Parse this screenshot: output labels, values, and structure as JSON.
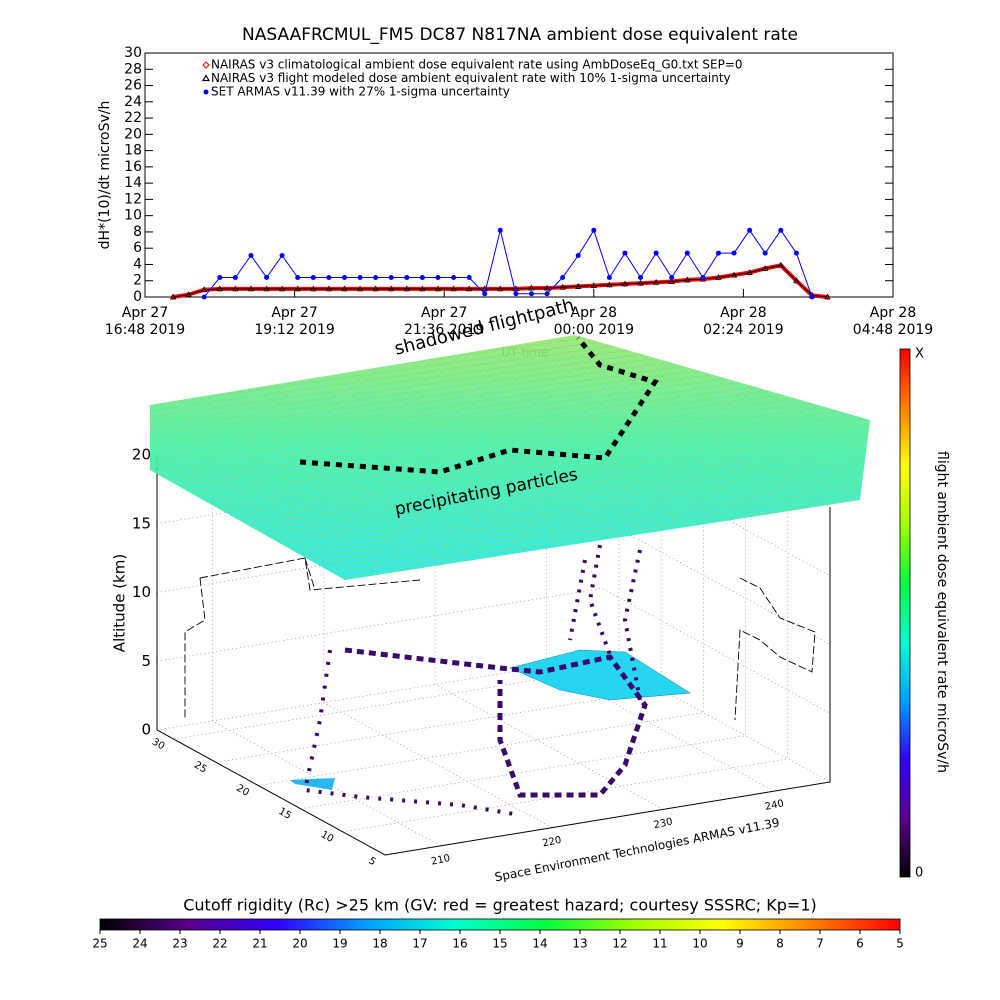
{
  "chart_data": [
    {
      "type": "line",
      "title": "NASAAFRCMUL_FM5 DC87 N817NA ambient dose equivalent rate",
      "xlabel": "UT time",
      "ylabel": "dH*(10)/dt microSv/h",
      "x": [
        "2019-04-27T17:15",
        "2019-04-27T17:30",
        "2019-04-27T17:45",
        "2019-04-27T18:00",
        "2019-04-27T18:15",
        "2019-04-27T18:30",
        "2019-04-27T18:45",
        "2019-04-27T19:00",
        "2019-04-27T19:15",
        "2019-04-27T19:30",
        "2019-04-27T19:45",
        "2019-04-27T20:00",
        "2019-04-27T20:15",
        "2019-04-27T20:30",
        "2019-04-27T20:45",
        "2019-04-27T21:00",
        "2019-04-27T21:15",
        "2019-04-27T21:30",
        "2019-04-27T21:45",
        "2019-04-27T22:00",
        "2019-04-27T22:15",
        "2019-04-27T22:30",
        "2019-04-27T22:45",
        "2019-04-27T23:00",
        "2019-04-27T23:15",
        "2019-04-27T23:30",
        "2019-04-27T23:45",
        "2019-04-28T00:00",
        "2019-04-28T00:15",
        "2019-04-28T00:30",
        "2019-04-28T00:45",
        "2019-04-28T01:00",
        "2019-04-28T01:15",
        "2019-04-28T01:30",
        "2019-04-28T01:45",
        "2019-04-28T02:00",
        "2019-04-28T02:15",
        "2019-04-28T02:30",
        "2019-04-28T02:45",
        "2019-04-28T03:00",
        "2019-04-28T03:15",
        "2019-04-28T03:30",
        "2019-04-28T03:45"
      ],
      "series": [
        {
          "name": "NAIRAS v3 climatological ambient dose equivalent rate using AmbDoseEq_G0.txt SEP=0",
          "color": "#ff0000",
          "marker": "diamond",
          "values": [
            0,
            0.3,
            0.9,
            1,
            1,
            1,
            1,
            1,
            1,
            1,
            1,
            1,
            1,
            1,
            1,
            1,
            1,
            1,
            1,
            1,
            1,
            1,
            1,
            1.1,
            1.1,
            1.2,
            1.3,
            1.4,
            1.5,
            1.6,
            1.7,
            1.8,
            1.9,
            2.1,
            2.2,
            2.4,
            2.7,
            3,
            3.5,
            3.9,
            2,
            0.2,
            0
          ]
        },
        {
          "name": "NAIRAS v3 flight modeled dose ambient equivalent rate with 10% 1-sigma uncertainty",
          "color": "#000000",
          "marker": "triangle",
          "values": [
            0,
            0.3,
            0.9,
            1,
            1,
            1,
            1,
            1,
            1,
            1,
            1,
            1,
            1,
            1,
            1,
            1,
            1,
            1,
            1,
            1,
            1,
            1,
            1,
            1.1,
            1.1,
            1.2,
            1.3,
            1.4,
            1.5,
            1.6,
            1.7,
            1.8,
            1.9,
            2.1,
            2.2,
            2.4,
            2.7,
            3,
            3.5,
            3.9,
            2,
            0.2,
            0
          ]
        },
        {
          "name": "SET ARMAS v11.39 with 27% 1-sigma uncertainty",
          "color": "#0000ff",
          "marker": "circle",
          "values": [
            null,
            null,
            0,
            2.4,
            2.4,
            5.1,
            2.4,
            5.1,
            2.4,
            2.4,
            2.4,
            2.4,
            2.4,
            2.4,
            2.4,
            2.4,
            2.4,
            2.4,
            2.4,
            2.4,
            0.4,
            8.2,
            0.4,
            0.4,
            0.4,
            2.4,
            5.1,
            8.2,
            2.4,
            5.4,
            2.4,
            5.4,
            2.4,
            5.4,
            2.4,
            5.4,
            5.4,
            8.2,
            5.4,
            8.2,
            5.4,
            0,
            null
          ]
        }
      ],
      "xlim": [
        "2019-04-27T16:48",
        "2019-04-28T04:48"
      ],
      "xticks": [
        {
          "value": "2019-04-27T16:48",
          "label": "Apr 27\n16:48 2019"
        },
        {
          "value": "2019-04-27T19:12",
          "label": "Apr 27\n19:12 2019"
        },
        {
          "value": "2019-04-27T21:36",
          "label": "Apr 27\n21:36 2019"
        },
        {
          "value": "2019-04-28T00:00",
          "label": "Apr 28\n00:00 2019"
        },
        {
          "value": "2019-04-28T02:24",
          "label": "Apr 28\n02:24 2019"
        },
        {
          "value": "2019-04-28T04:48",
          "label": "Apr 28\n04:48 2019"
        }
      ],
      "ylim": [
        0,
        30
      ],
      "yticks": [
        0,
        2,
        4,
        6,
        8,
        10,
        12,
        14,
        16,
        18,
        20,
        22,
        24,
        26,
        28,
        30
      ],
      "legend": "upper-left"
    },
    {
      "type": "scatter3d",
      "zlabel": "Altitude (km)",
      "zlim": [
        0,
        20
      ],
      "zticks": [
        0,
        5,
        10,
        15,
        20
      ],
      "lonlim": [
        205,
        245
      ],
      "lonticks": [
        210,
        220,
        230,
        240
      ],
      "latlim": [
        32,
        5
      ],
      "latticks": [
        30,
        25,
        20,
        15,
        10,
        5
      ],
      "annotations": [
        "shadowed flightpath",
        "precipitating particles"
      ],
      "caption": "Space Environment Technologies ARMAS v11.39"
    },
    {
      "type": "colorbar",
      "orientation": "vertical",
      "label": "flight ambient dose equivalent rate microSv/h",
      "top_label": "X",
      "bottom_label": 0,
      "colors": [
        "#000000",
        "#5a008c",
        "#3000ff",
        "#00a0ff",
        "#00ffd0",
        "#00ff40",
        "#a0ff00",
        "#ffff00",
        "#ff8000",
        "#ff0000"
      ]
    },
    {
      "type": "colorbar",
      "orientation": "horizontal",
      "title": "Cutoff rigidity (Rc) >25 km (GV: red = greatest hazard; courtesy SSSRC; Kp=1)",
      "lim": [
        25,
        5
      ],
      "ticks": [
        25,
        24,
        23,
        22,
        21,
        20,
        19,
        18,
        17,
        16,
        15,
        14,
        13,
        12,
        11,
        10,
        9,
        8,
        7,
        6,
        5
      ],
      "colors": [
        "#000000",
        "#5a008c",
        "#3000ff",
        "#00a0ff",
        "#00ffd0",
        "#00ff40",
        "#a0ff00",
        "#ffff00",
        "#ff8000",
        "#ff0000"
      ]
    }
  ]
}
